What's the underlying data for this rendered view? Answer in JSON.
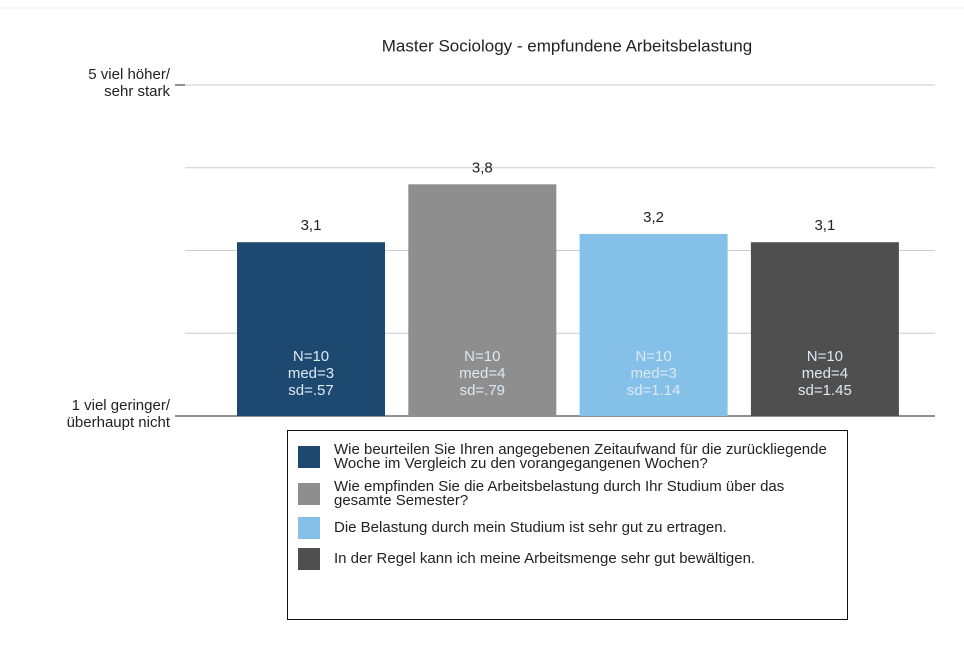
{
  "chart_data": {
    "type": "bar",
    "title": "Master Sociology - empfundene Arbeitsbelastung",
    "categories": [
      "Wie beurteilen Sie Ihren angegebenen Zeitaufwand für die zurückliegende Woche im Vergleich zu den vorangegangenen Wochen?",
      "Wie empfinden Sie die Arbeitsbelastung durch Ihr Studium über das gesamte Semester?",
      "Die Belastung durch mein Studium ist sehr gut zu ertragen.",
      "In der Regel kann ich meine Arbeitsmenge sehr gut bewältigen."
    ],
    "values": [
      3.1,
      3.8,
      3.2,
      3.1
    ],
    "value_labels": [
      "3,1",
      "3,8",
      "3,2",
      "3,1"
    ],
    "colors": [
      "#1d4971",
      "#8e8e8e",
      "#85c0e8",
      "#4f4f4f"
    ],
    "annotations": [
      [
        "N=10",
        "med=3",
        "sd=.57"
      ],
      [
        "N=10",
        "med=4",
        "sd=.79"
      ],
      [
        "N=10",
        "med=3",
        "sd=1.14"
      ],
      [
        "N=10",
        "med=4",
        "sd=1.45"
      ]
    ],
    "ylim": [
      1,
      5
    ],
    "yticks": [
      {
        "value": 1,
        "label": [
          "1 viel geringer/",
          "überhaupt nicht"
        ]
      },
      {
        "value": 2,
        "label": null
      },
      {
        "value": 3,
        "label": null
      },
      {
        "value": 4,
        "label": null
      },
      {
        "value": 5,
        "label": [
          "5 viel höher/",
          "sehr stark"
        ]
      }
    ],
    "grid": true
  }
}
